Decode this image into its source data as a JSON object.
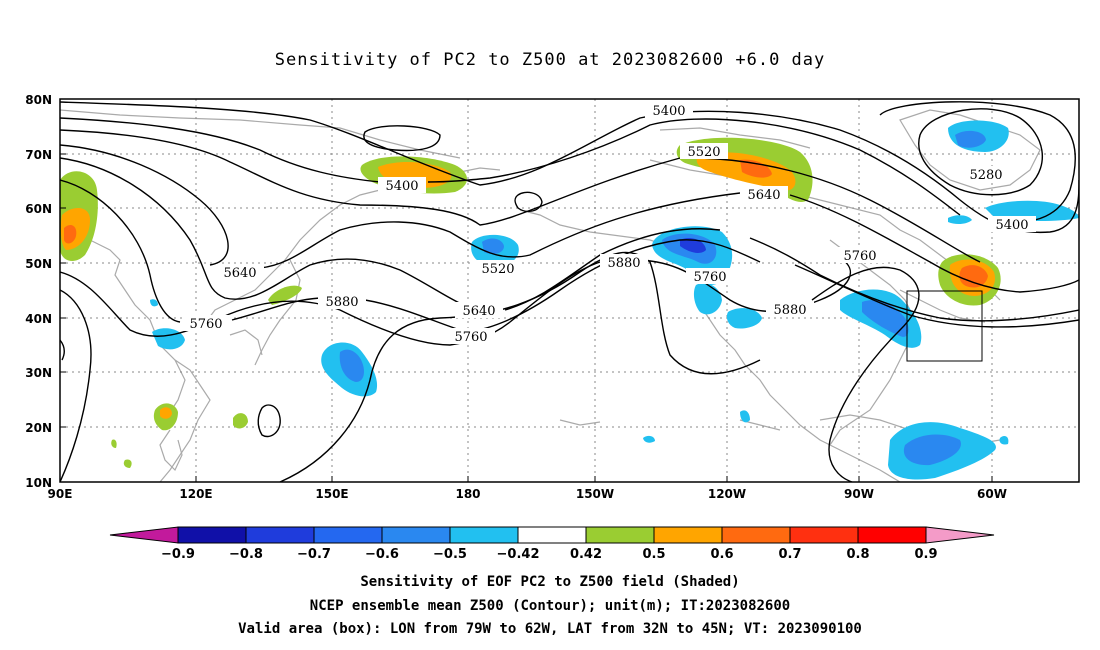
{
  "title": "Sensitivity of PC2 to Z500 at 2023082600 +6.0 day",
  "captions": [
    "Sensitivity of EOF PC2 to Z500 field (Shaded)",
    "NCEP ensemble mean Z500 (Contour); unit(m); IT:2023082600",
    "Valid area (box): LON from 79W to 62W, LAT from 32N to 45N; VT: 2023090100"
  ],
  "lat_labels": [
    "80N",
    "70N",
    "60N",
    "50N",
    "40N",
    "30N",
    "20N",
    "10N"
  ],
  "lon_labels": [
    "90E",
    "120E",
    "150E",
    "180",
    "150W",
    "120W",
    "90W",
    "60W"
  ],
  "contour_labels": [
    "5400",
    "5520",
    "5640",
    "5280",
    "5400",
    "5520",
    "5880",
    "5760",
    "5640",
    "5760",
    "5880",
    "5760",
    "5880",
    "5640",
    "5760",
    "5400"
  ],
  "colorbar": {
    "labels": [
      "−0.9",
      "−0.8",
      "−0.7",
      "−0.6",
      "−0.5",
      "−0.42",
      "0.42",
      "0.5",
      "0.6",
      "0.7",
      "0.8",
      "0.9"
    ],
    "colors": [
      "#c21a9c",
      "#1010a8",
      "#1f3cdc",
      "#2468f0",
      "#2a88f0",
      "#22c0f0",
      "#ffffff",
      "#9acd32",
      "#ffa500",
      "#ff6a10",
      "#ff3010",
      "#ff0000",
      "#f49bc8"
    ]
  },
  "valid_box": {
    "lon_west": -79,
    "lon_east": -62,
    "lat_south": 32,
    "lat_north": 45
  }
}
